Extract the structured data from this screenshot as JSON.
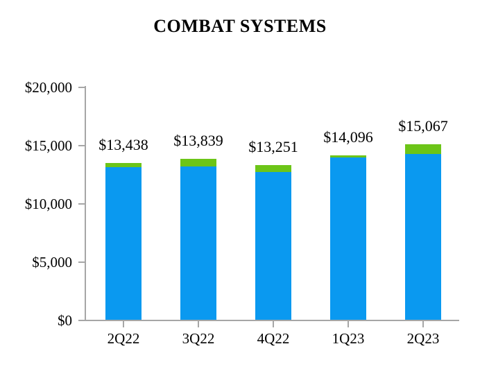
{
  "title": "COMBAT SYSTEMS",
  "chart_data": {
    "type": "bar",
    "stacked": true,
    "title": "COMBAT SYSTEMS",
    "categories": [
      "2Q22",
      "3Q22",
      "4Q22",
      "1Q23",
      "2Q23"
    ],
    "series": [
      {
        "name": "blue-segment",
        "color": "#0A99F0",
        "values": [
          13120,
          13134,
          12700,
          13907,
          14203
        ]
      },
      {
        "name": "green-segment",
        "color": "#6CC518",
        "values": [
          318,
          705,
          551,
          189,
          864
        ]
      }
    ],
    "totals": [
      13438,
      13839,
      13251,
      14096,
      15067
    ],
    "total_labels": [
      "$13,438",
      "$13,839",
      "$13,251",
      "$14,096",
      "$15,067"
    ],
    "xlabel": "",
    "ylabel": "",
    "y_axis": {
      "min": 0,
      "max": 20000,
      "step": 5000,
      "tick_labels": [
        "$0",
        "$5,000",
        "$10,000",
        "$15,000",
        "$20,000"
      ]
    },
    "ylim": [
      0,
      20000
    ],
    "grid": "off",
    "legend": "none",
    "axis_color": "#A6A6A6",
    "text_color": "#000000"
  }
}
